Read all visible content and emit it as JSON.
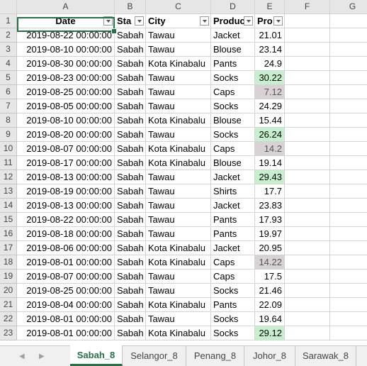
{
  "columns": [
    "A",
    "B",
    "C",
    "D",
    "E",
    "F",
    "G"
  ],
  "headers": [
    "Date",
    "Sta",
    "City",
    "Produc",
    "Pro"
  ],
  "rows": [
    {
      "n": "1"
    },
    {
      "n": "2",
      "date": "2019-08-22 00:00:00",
      "state": "Sabah",
      "city": "Tawau",
      "product": "Jacket",
      "profit": "21.01"
    },
    {
      "n": "3",
      "date": "2019-08-10 00:00:00",
      "state": "Sabah",
      "city": "Tawau",
      "product": "Blouse",
      "profit": "23.14"
    },
    {
      "n": "4",
      "date": "2019-08-30 00:00:00",
      "state": "Sabah",
      "city": "Kota Kinabalu",
      "product": "Pants",
      "profit": "24.9"
    },
    {
      "n": "5",
      "date": "2019-08-23 00:00:00",
      "state": "Sabah",
      "city": "Tawau",
      "product": "Socks",
      "profit": "30.22",
      "hl": "green"
    },
    {
      "n": "6",
      "date": "2019-08-25 00:00:00",
      "state": "Sabah",
      "city": "Tawau",
      "product": "Caps",
      "profit": "7.12",
      "hl": "gray"
    },
    {
      "n": "7",
      "date": "2019-08-05 00:00:00",
      "state": "Sabah",
      "city": "Tawau",
      "product": "Socks",
      "profit": "24.29"
    },
    {
      "n": "8",
      "date": "2019-08-10 00:00:00",
      "state": "Sabah",
      "city": "Kota Kinabalu",
      "product": "Blouse",
      "profit": "15.44"
    },
    {
      "n": "9",
      "date": "2019-08-20 00:00:00",
      "state": "Sabah",
      "city": "Tawau",
      "product": "Socks",
      "profit": "26.24",
      "hl": "green"
    },
    {
      "n": "10",
      "date": "2019-08-07 00:00:00",
      "state": "Sabah",
      "city": "Kota Kinabalu",
      "product": "Caps",
      "profit": "14.2",
      "hl": "gray"
    },
    {
      "n": "11",
      "date": "2019-08-17 00:00:00",
      "state": "Sabah",
      "city": "Kota Kinabalu",
      "product": "Blouse",
      "profit": "19.14"
    },
    {
      "n": "12",
      "date": "2019-08-13 00:00:00",
      "state": "Sabah",
      "city": "Tawau",
      "product": "Jacket",
      "profit": "29.43",
      "hl": "green"
    },
    {
      "n": "13",
      "date": "2019-08-19 00:00:00",
      "state": "Sabah",
      "city": "Tawau",
      "product": "Shirts",
      "profit": "17.7"
    },
    {
      "n": "14",
      "date": "2019-08-13 00:00:00",
      "state": "Sabah",
      "city": "Tawau",
      "product": "Jacket",
      "profit": "23.83"
    },
    {
      "n": "15",
      "date": "2019-08-22 00:00:00",
      "state": "Sabah",
      "city": "Tawau",
      "product": "Pants",
      "profit": "17.93"
    },
    {
      "n": "16",
      "date": "2019-08-18 00:00:00",
      "state": "Sabah",
      "city": "Tawau",
      "product": "Pants",
      "profit": "19.97"
    },
    {
      "n": "17",
      "date": "2019-08-06 00:00:00",
      "state": "Sabah",
      "city": "Kota Kinabalu",
      "product": "Jacket",
      "profit": "20.95"
    },
    {
      "n": "18",
      "date": "2019-08-01 00:00:00",
      "state": "Sabah",
      "city": "Kota Kinabalu",
      "product": "Caps",
      "profit": "14.22",
      "hl": "gray"
    },
    {
      "n": "19",
      "date": "2019-08-07 00:00:00",
      "state": "Sabah",
      "city": "Tawau",
      "product": "Caps",
      "profit": "17.5"
    },
    {
      "n": "20",
      "date": "2019-08-25 00:00:00",
      "state": "Sabah",
      "city": "Tawau",
      "product": "Socks",
      "profit": "21.46"
    },
    {
      "n": "21",
      "date": "2019-08-04 00:00:00",
      "state": "Sabah",
      "city": "Kota Kinabalu",
      "product": "Pants",
      "profit": "22.09"
    },
    {
      "n": "22",
      "date": "2019-08-01 00:00:00",
      "state": "Sabah",
      "city": "Tawau",
      "product": "Socks",
      "profit": "19.64"
    },
    {
      "n": "23",
      "date": "2019-08-01 00:00:00",
      "state": "Sabah",
      "city": "Kota Kinabalu",
      "product": "Socks",
      "profit": "29.12",
      "hl": "green"
    }
  ],
  "tabs": [
    "Sabah_8",
    "Selangor_8",
    "Penang_8",
    "Johor_8",
    "Sarawak_8"
  ],
  "active_tab": "Sabah_8",
  "colors": {
    "accent": "#217346",
    "good_fill": "#c6efce",
    "low_fill": "#d9d2d5"
  }
}
